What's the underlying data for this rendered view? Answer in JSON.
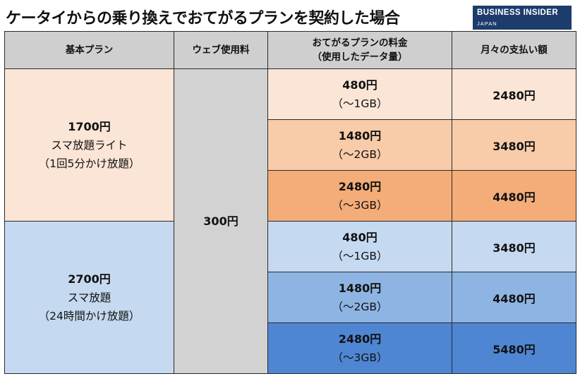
{
  "title": "ケータイからの乗り換えでおてがるプランを契約した場合",
  "logo": {
    "line1": "BUSINESS INSIDER",
    "line2": "JAPAN"
  },
  "headers": {
    "basic_plan": "基本プラン",
    "web_fee": "ウェブ使用料",
    "otegaru_fee_line1": "おてがるプランの料金",
    "otegaru_fee_line2": "（使用したデータ量）",
    "monthly_total": "月々の支払い額"
  },
  "web_fee_value": "300円",
  "plans": [
    {
      "price": "1700円",
      "name": "スマ放題ライト",
      "note": "（1回5分かけ放題）",
      "rows": [
        {
          "fee": "480円",
          "data": "（〜1GB）",
          "total": "2480円",
          "color": "#fbe5d6"
        },
        {
          "fee": "1480円",
          "data": "（〜2GB）",
          "total": "3480円",
          "color": "#f8cba9"
        },
        {
          "fee": "2480円",
          "data": "（〜3GB）",
          "total": "4480円",
          "color": "#f4ad78"
        }
      ]
    },
    {
      "price": "2700円",
      "name": "スマ放題",
      "note": "（24時間かけ放題）",
      "rows": [
        {
          "fee": "480円",
          "data": "（〜1GB）",
          "total": "3480円",
          "color": "#c5d9f0"
        },
        {
          "fee": "1480円",
          "data": "（〜2GB）",
          "total": "4480円",
          "color": "#8eb4e3"
        },
        {
          "fee": "2480円",
          "data": "（〜3GB）",
          "total": "5480円",
          "color": "#4f86d3"
        }
      ]
    }
  ]
}
